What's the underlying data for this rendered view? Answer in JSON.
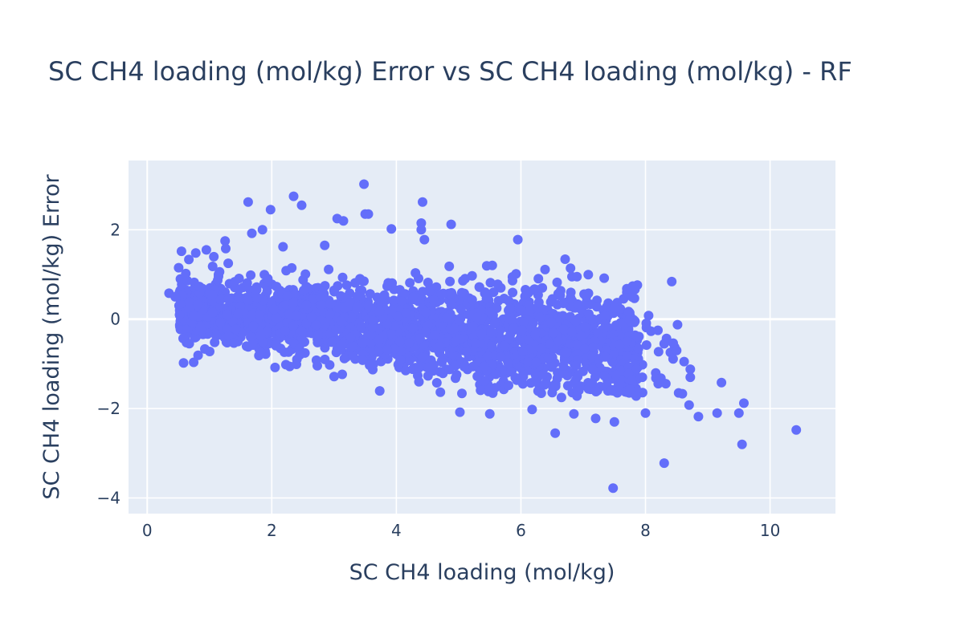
{
  "chart_data": {
    "type": "scatter",
    "title": "SC CH4 loading (mol/kg) Error vs SC CH4 loading (mol/kg) - RF",
    "xlabel": "SC CH4 loading (mol/kg)",
    "ylabel": "SC CH4 loading (mol/kg) Error",
    "xlim": [
      -0.3,
      11.05
    ],
    "ylim": [
      -4.35,
      3.55
    ],
    "x_ticks": [
      0,
      2,
      4,
      6,
      8,
      10
    ],
    "y_ticks": [
      -4,
      -2,
      0,
      2
    ],
    "x_tick_labels": [
      "0",
      "2",
      "4",
      "6",
      "8",
      "10"
    ],
    "y_tick_labels": [
      "−4",
      "−2",
      "0",
      "2"
    ],
    "grid": true,
    "marker_color": "#636efa",
    "plot_bg": "#e5ecf6",
    "grid_color": "#ffffff",
    "text_color": "#2a3f5f",
    "notable_points": [
      {
        "x": 0.35,
        "y": 0.58
      },
      {
        "x": 0.55,
        "y": 1.52
      },
      {
        "x": 0.62,
        "y": 1.02
      },
      {
        "x": 0.78,
        "y": 1.48
      },
      {
        "x": 0.95,
        "y": 1.55
      },
      {
        "x": 1.05,
        "y": 1.18
      },
      {
        "x": 1.25,
        "y": 1.75
      },
      {
        "x": 1.26,
        "y": 1.58
      },
      {
        "x": 1.62,
        "y": 2.62
      },
      {
        "x": 1.68,
        "y": 1.92
      },
      {
        "x": 1.85,
        "y": 2.0
      },
      {
        "x": 1.98,
        "y": 2.45
      },
      {
        "x": 2.35,
        "y": 2.75
      },
      {
        "x": 2.48,
        "y": 2.55
      },
      {
        "x": 2.18,
        "y": 1.62
      },
      {
        "x": 2.85,
        "y": 1.65
      },
      {
        "x": 3.05,
        "y": 2.25
      },
      {
        "x": 3.15,
        "y": 2.2
      },
      {
        "x": 3.48,
        "y": 3.02
      },
      {
        "x": 3.5,
        "y": 2.35
      },
      {
        "x": 3.55,
        "y": 2.35
      },
      {
        "x": 3.92,
        "y": 2.02
      },
      {
        "x": 4.42,
        "y": 2.62
      },
      {
        "x": 4.4,
        "y": 2.15
      },
      {
        "x": 4.4,
        "y": 2.0
      },
      {
        "x": 4.45,
        "y": 1.78
      },
      {
        "x": 4.88,
        "y": 2.12
      },
      {
        "x": 5.95,
        "y": 1.78
      },
      {
        "x": 7.7,
        "y": 0.68
      },
      {
        "x": 8.05,
        "y": 0.08
      },
      {
        "x": 8.2,
        "y": -0.25
      },
      {
        "x": 8.3,
        "y": -0.55
      },
      {
        "x": 8.5,
        "y": -0.7
      },
      {
        "x": 8.62,
        "y": -0.95
      },
      {
        "x": 8.72,
        "y": -1.12
      },
      {
        "x": 8.72,
        "y": -1.3
      },
      {
        "x": 9.22,
        "y": -1.42
      },
      {
        "x": 9.58,
        "y": -1.88
      },
      {
        "x": 8.7,
        "y": -1.92
      },
      {
        "x": 8.85,
        "y": -2.18
      },
      {
        "x": 9.15,
        "y": -2.1
      },
      {
        "x": 9.5,
        "y": -2.1
      },
      {
        "x": 9.55,
        "y": -2.8
      },
      {
        "x": 10.42,
        "y": -2.48
      },
      {
        "x": 8.3,
        "y": -3.22
      },
      {
        "x": 7.48,
        "y": -3.78
      },
      {
        "x": 7.5,
        "y": -2.3
      },
      {
        "x": 7.2,
        "y": -2.22
      },
      {
        "x": 6.85,
        "y": -2.12
      },
      {
        "x": 6.55,
        "y": -2.55
      },
      {
        "x": 6.18,
        "y": -2.02
      },
      {
        "x": 5.5,
        "y": -2.12
      },
      {
        "x": 5.02,
        "y": -2.08
      },
      {
        "x": 5.48,
        "y": -1.62
      },
      {
        "x": 5.8,
        "y": -1.48
      },
      {
        "x": 6.65,
        "y": -1.75
      },
      {
        "x": 6.9,
        "y": -1.72
      },
      {
        "x": 7.45,
        "y": -1.6
      },
      {
        "x": 7.85,
        "y": -1.72
      },
      {
        "x": 8.0,
        "y": -2.1
      },
      {
        "x": 7.38,
        "y": 0.28
      },
      {
        "x": 7.5,
        "y": 0.25
      },
      {
        "x": 6.82,
        "y": 0.95
      },
      {
        "x": 6.9,
        "y": 0.95
      },
      {
        "x": 7.05,
        "y": 0.5
      },
      {
        "x": 0.45,
        "y": 0.5
      },
      {
        "x": 0.52,
        "y": 0.1
      },
      {
        "x": 2.45,
        "y": -0.8
      },
      {
        "x": 3.3,
        "y": -0.82
      },
      {
        "x": 4.15,
        "y": -1.15
      },
      {
        "x": 4.95,
        "y": -1.32
      },
      {
        "x": 5.3,
        "y": -1.28
      }
    ]
  }
}
